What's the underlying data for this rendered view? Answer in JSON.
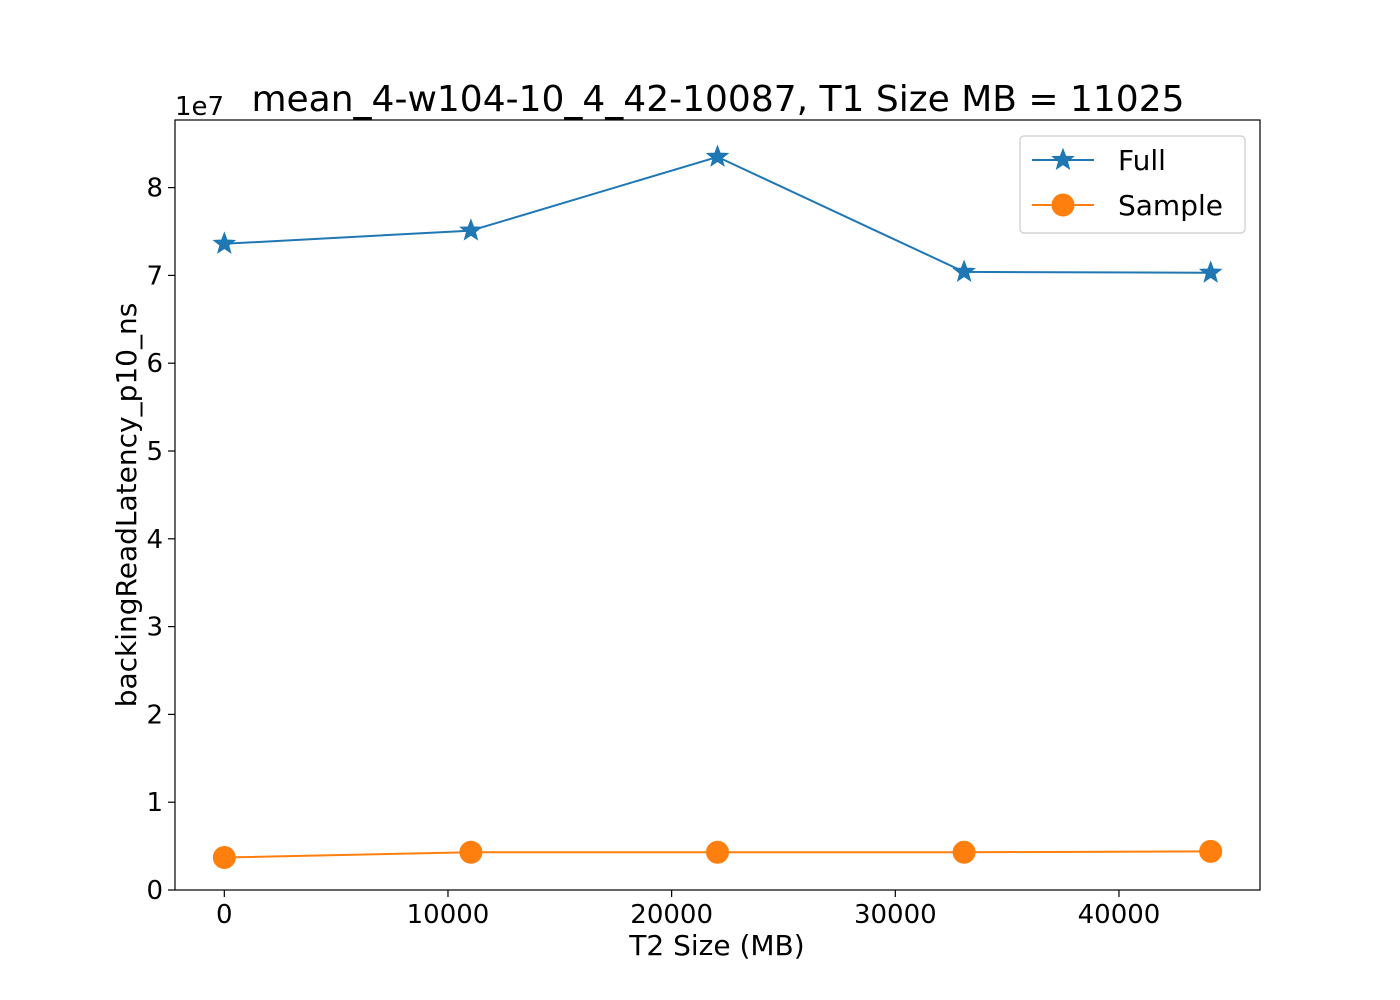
{
  "chart_data": {
    "type": "line",
    "title": "mean_4-w104-10_4_42-10087, T1 Size MB = 11025",
    "xlabel": "T2 Size (MB)",
    "ylabel": "backingReadLatency_p10_ns",
    "y_scale_label": "1e7",
    "xlim": [
      -2205,
      46305
    ],
    "ylim": [
      0,
      8.77
    ],
    "x_ticks": [
      0,
      10000,
      20000,
      30000,
      40000
    ],
    "y_ticks": [
      0,
      1,
      2,
      3,
      4,
      5,
      6,
      7,
      8
    ],
    "x": [
      0,
      11025,
      22050,
      33075,
      44100
    ],
    "series": [
      {
        "name": "Full",
        "marker": "star",
        "color": "#1f77b4",
        "values": [
          7.36,
          7.51,
          8.35,
          7.04,
          7.03
        ]
      },
      {
        "name": "Sample",
        "marker": "circle",
        "color": "#ff7f0e",
        "values": [
          0.37,
          0.43,
          0.43,
          0.43,
          0.44
        ]
      }
    ],
    "grid": false,
    "legend_position": "top-right"
  }
}
